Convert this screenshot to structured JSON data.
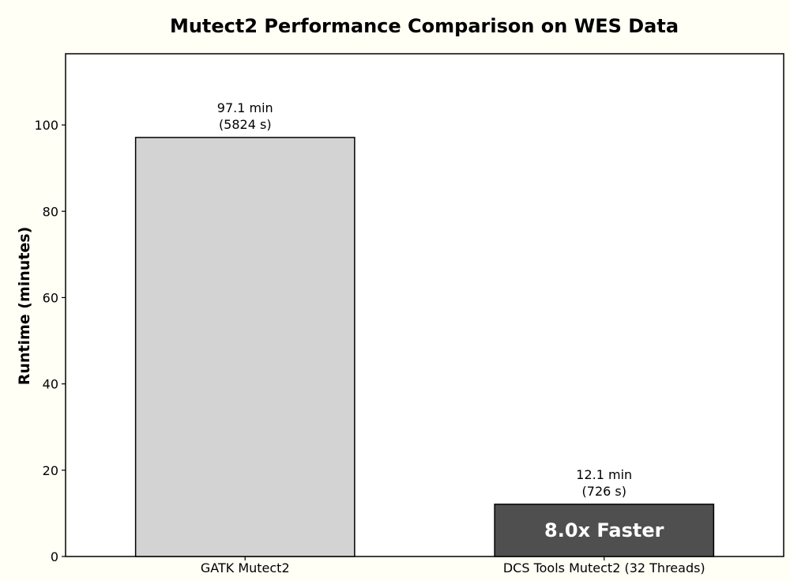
{
  "chart_data": {
    "type": "bar",
    "title": "Mutect2 Performance Comparison on WES Data",
    "xlabel": "",
    "ylabel": "Runtime (minutes)",
    "categories": [
      "GATK Mutect2",
      "DCS Tools Mutect2 (32 Threads)"
    ],
    "values": [
      97.1,
      12.1
    ],
    "seconds": [
      5824,
      726
    ],
    "bar_colors": [
      "#d3d3d3",
      "#4f4f4f"
    ],
    "data_labels": [
      [
        "97.1 min",
        "(5824 s)"
      ],
      [
        "12.1 min",
        "(726 s)"
      ]
    ],
    "annotation": "8.0x Faster",
    "ylim": [
      0,
      116.5
    ],
    "yticks": [
      0,
      20,
      40,
      60,
      80,
      100
    ],
    "grid": false,
    "legend": "none"
  }
}
